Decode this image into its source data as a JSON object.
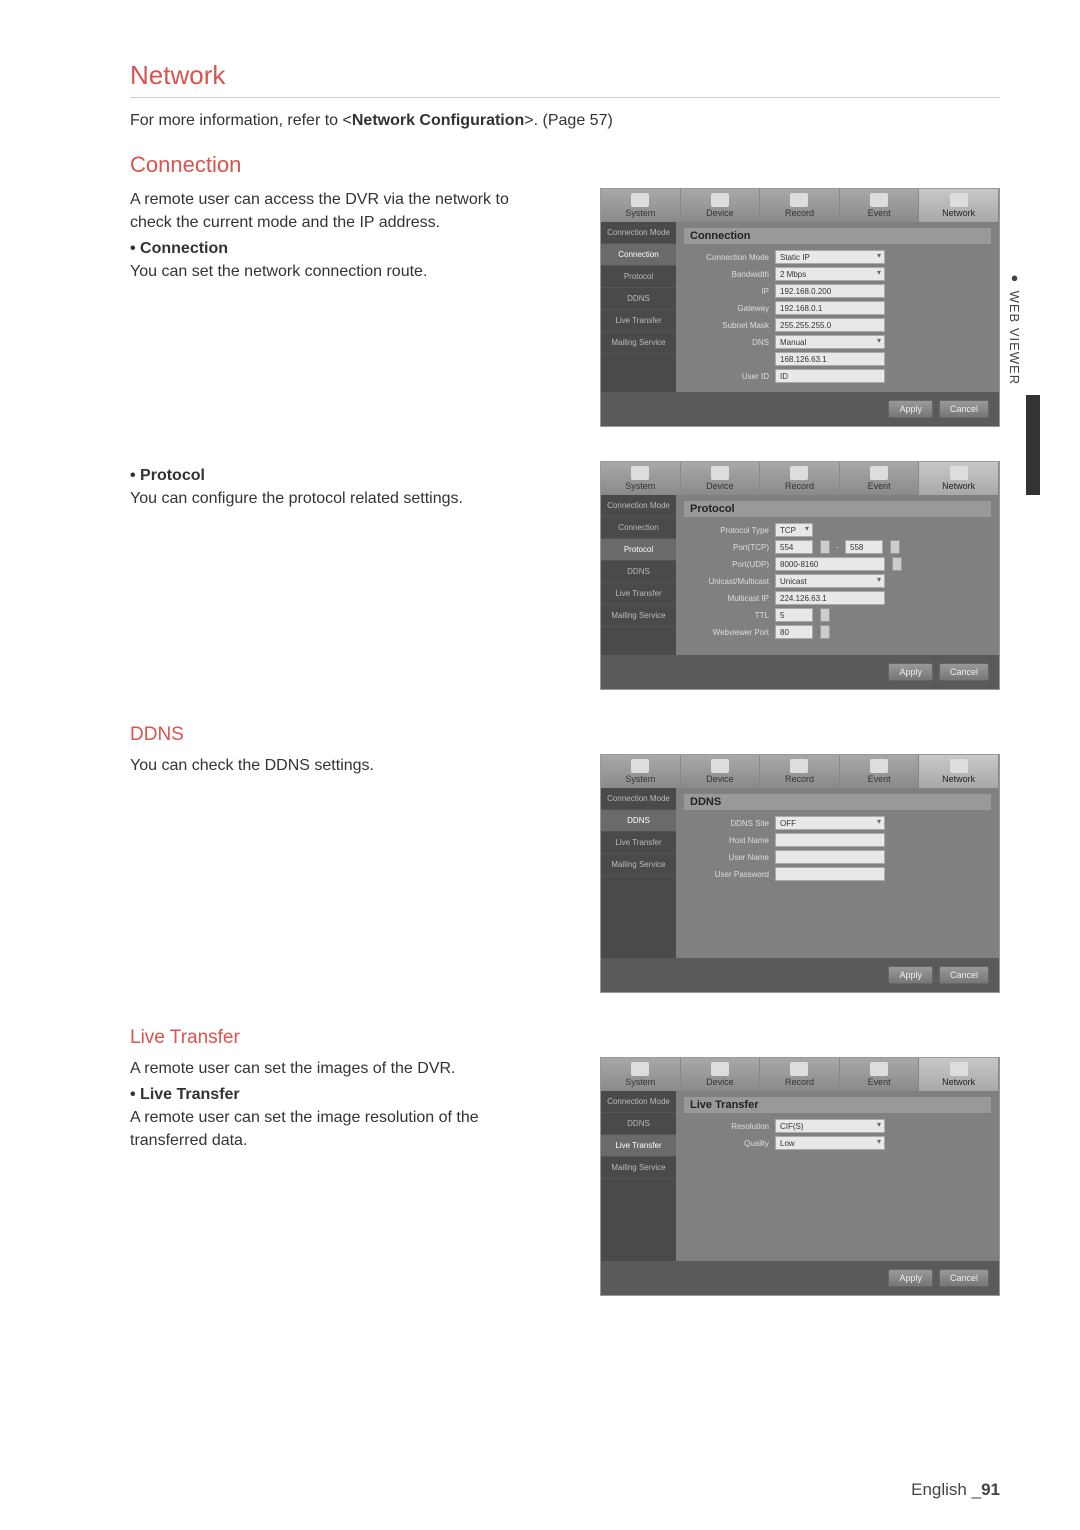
{
  "page": {
    "h1": "Network",
    "intro_pre": "For more information, refer to <",
    "intro_bold": "Network Configuration",
    "intro_post": ">. (Page 57)",
    "footer_lang": "English ",
    "footer_sep": "_",
    "footer_num": "91",
    "side_tab": "● WEB VIEWER"
  },
  "tabs": [
    "System",
    "Device",
    "Record",
    "Event",
    "Network"
  ],
  "sections": {
    "connection": {
      "h2": "Connection",
      "desc": "A remote user can access the DVR via the network to check the current mode and the IP address.",
      "bullet": "• Connection",
      "sub": "You can set the network connection route.",
      "panel_title": "Connection",
      "side_items": [
        "Connection Mode",
        "Connection",
        "Protocol",
        "DDNS",
        "Live Transfer",
        "Mailing Service"
      ],
      "side_active": 1,
      "fields": [
        {
          "label": "Connection Mode",
          "value": "Static IP",
          "sel": true,
          "w": "w1"
        },
        {
          "label": "Bandwidth",
          "value": "2 Mbps",
          "sel": true,
          "w": "w1"
        },
        {
          "label": "IP",
          "value": "192.168.0.200",
          "w": "w1"
        },
        {
          "label": "Gateway",
          "value": "192.168.0.1",
          "w": "w1"
        },
        {
          "label": "Subnet Mask",
          "value": "255.255.255.0",
          "w": "w1"
        },
        {
          "label": "DNS",
          "value": "Manual",
          "sel": true,
          "w": "w1"
        },
        {
          "label": "",
          "value": "168.126.63.1",
          "w": "w1"
        },
        {
          "label": "User ID",
          "value": "ID",
          "w": "w1"
        }
      ]
    },
    "protocol": {
      "bullet": "• Protocol",
      "sub": "You can configure the protocol related settings.",
      "panel_title": "Protocol",
      "side_items": [
        "Connection Mode",
        "Connection",
        "Protocol",
        "DDNS",
        "Live Transfer",
        "Mailing Service"
      ],
      "side_active": 2,
      "fields": [
        {
          "label": "Protocol Type",
          "value": "TCP",
          "sel": true,
          "w": "w2",
          "spin": false
        },
        {
          "label": "Port(TCP)",
          "value": "554",
          "w": "w2",
          "dual": true,
          "value2": "558"
        },
        {
          "label": "Port(UDP)",
          "value": "8000-8160",
          "w": "w1",
          "spin": true
        },
        {
          "label": "Unicast/Multicast",
          "value": "Unicast",
          "sel": true,
          "w": "w1"
        },
        {
          "label": "Multicast IP",
          "value": "224.126.63.1",
          "w": "w1"
        },
        {
          "label": "TTL",
          "value": "5",
          "w": "w2",
          "spin": true
        },
        {
          "label": "Webviewer Port",
          "value": "80",
          "w": "w2",
          "spin": true
        }
      ]
    },
    "ddns": {
      "h3": "DDNS",
      "desc": "You can check the DDNS settings.",
      "panel_title": "DDNS",
      "side_items": [
        "Connection Mode",
        "DDNS",
        "Live Transfer",
        "Mailing Service"
      ],
      "side_active": 1,
      "fields": [
        {
          "label": "DDNS Site",
          "value": "OFF",
          "sel": true,
          "w": "w1"
        },
        {
          "label": "Host Name",
          "value": "",
          "w": "w1"
        },
        {
          "label": "User Name",
          "value": "",
          "w": "w1"
        },
        {
          "label": "User Password",
          "value": "",
          "w": "w1"
        }
      ]
    },
    "live": {
      "h3": "Live Transfer",
      "desc": "A remote user can set the images of the DVR.",
      "bullet": "• Live Transfer",
      "sub": "A remote user can set the image resolution of the transferred data.",
      "panel_title": "Live Transfer",
      "side_items": [
        "Connection Mode",
        "DDNS",
        "Live Transfer",
        "Mailing Service"
      ],
      "side_active": 2,
      "fields": [
        {
          "label": "Resolution",
          "value": "CIF(S)",
          "sel": true,
          "w": "w1"
        },
        {
          "label": "Quality",
          "value": "Low",
          "sel": true,
          "w": "w1"
        }
      ]
    }
  },
  "buttons": {
    "apply": "Apply",
    "cancel": "Cancel"
  }
}
